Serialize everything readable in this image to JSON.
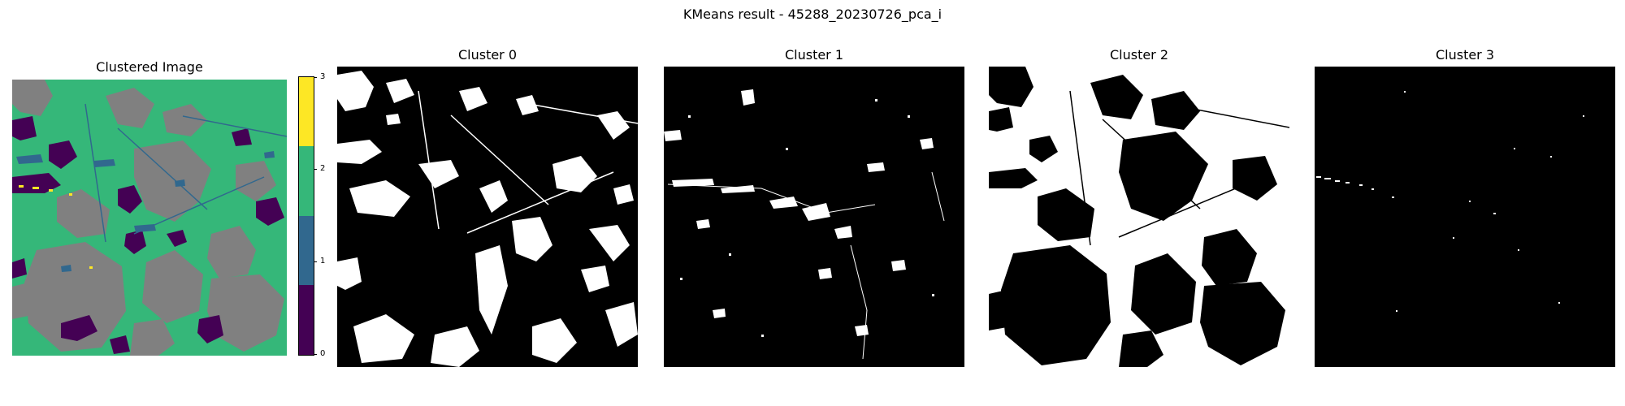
{
  "figure": {
    "suptitle": "KMeans result - 45288_20230726_pca_i"
  },
  "panels": {
    "clustered": {
      "title": "Clustered Image"
    },
    "cluster0": {
      "title": "Cluster 0"
    },
    "cluster1": {
      "title": "Cluster 1"
    },
    "cluster2": {
      "title": "Cluster 2"
    },
    "cluster3": {
      "title": "Cluster 3"
    }
  },
  "colorbar": {
    "ticks": [
      "0",
      "1",
      "2",
      "3"
    ],
    "colors": {
      "cluster0": "#440154",
      "cluster1": "#31688e",
      "cluster2": "#35b779",
      "cluster3": "#fde725"
    }
  },
  "overlay_colors": {
    "masked": "#808080",
    "mask_on": "#ffffff",
    "mask_off": "#000000"
  }
}
